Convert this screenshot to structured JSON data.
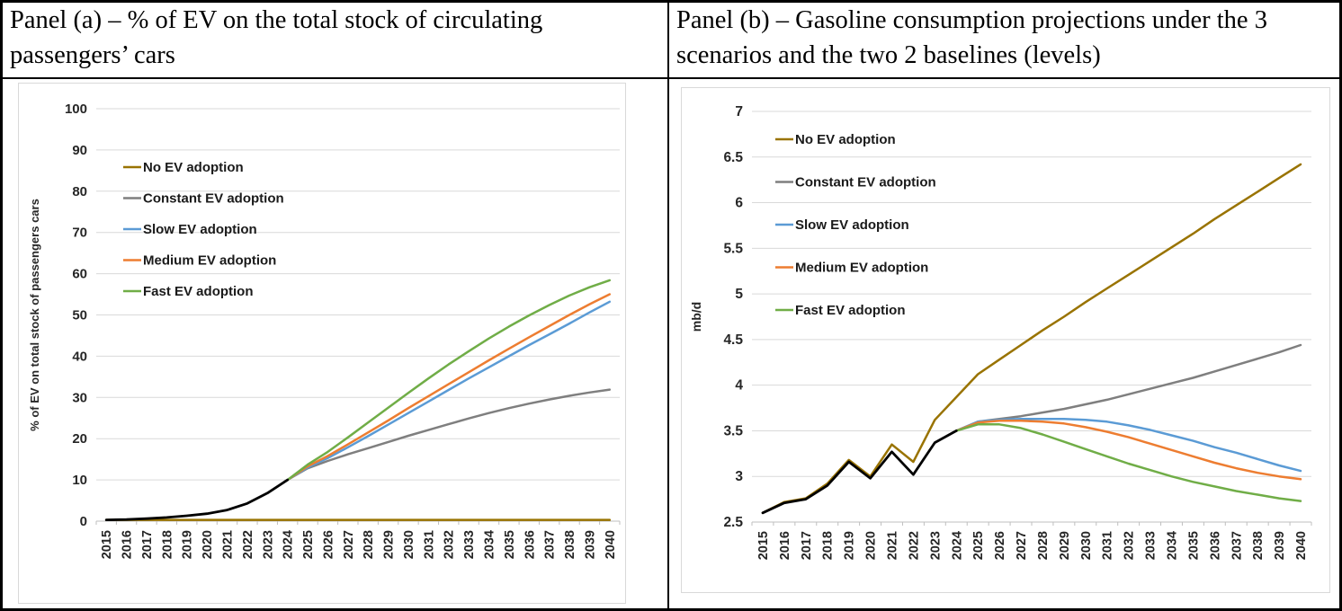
{
  "headers": {
    "panel_a": "Panel (a) – % of EV on the total stock of circulating passengers’ cars",
    "panel_b": "Panel (b) – Gasoline consumption projections under the 3 scenarios and the two 2 baselines (levels)"
  },
  "colors": {
    "no_ev": "#997300",
    "constant": "#7F7F7F",
    "slow": "#5B9BD5",
    "medium": "#ED7D31",
    "fast": "#70AD47",
    "historical": "#000000",
    "gridline": "#D9D9D9",
    "axis": "#BFBFBF",
    "tick_text": "#262626"
  },
  "chart_data": [
    {
      "panel": "a",
      "type": "line",
      "title": "",
      "xlabel": "",
      "ylabel": "% of EV on total stock of passengers cars",
      "ylim": [
        0,
        100
      ],
      "y_ticks": [
        0,
        10,
        20,
        30,
        40,
        50,
        60,
        70,
        80,
        90,
        100
      ],
      "x": [
        2015,
        2016,
        2017,
        2018,
        2019,
        2020,
        2021,
        2022,
        2023,
        2024,
        2025,
        2026,
        2027,
        2028,
        2029,
        2030,
        2031,
        2032,
        2033,
        2034,
        2035,
        2036,
        2037,
        2038,
        2039,
        2040
      ],
      "grid": true,
      "legend_position": "upper-left",
      "series": [
        {
          "name": "No EV adoption",
          "key": "no_ev",
          "color": "#997300",
          "start_year": 2015,
          "values": [
            0.3,
            0.3,
            0.3,
            0.3,
            0.3,
            0.3,
            0.3,
            0.3,
            0.3,
            0.3,
            0.3,
            0.3,
            0.3,
            0.3,
            0.3,
            0.3,
            0.3,
            0.3,
            0.3,
            0.3,
            0.3,
            0.3,
            0.3,
            0.3,
            0.3,
            0.3
          ]
        },
        {
          "name": "Constant EV adoption",
          "key": "constant",
          "color": "#7F7F7F",
          "start_year": 2024,
          "values": [
            10.0,
            12.8,
            14.6,
            16.2,
            17.7,
            19.2,
            20.7,
            22.1,
            23.5,
            24.9,
            26.2,
            27.4,
            28.5,
            29.5,
            30.4,
            31.2,
            31.9
          ]
        },
        {
          "name": "Slow EV adoption",
          "key": "slow",
          "color": "#5B9BD5",
          "start_year": 2024,
          "values": [
            10.0,
            13.0,
            15.3,
            17.9,
            20.6,
            23.4,
            26.2,
            29.0,
            31.8,
            34.6,
            37.3,
            40.0,
            42.7,
            45.3,
            47.9,
            50.6,
            53.2
          ]
        },
        {
          "name": "Medium EV adoption",
          "key": "medium",
          "color": "#ED7D31",
          "start_year": 2024,
          "values": [
            10.0,
            13.3,
            15.8,
            18.6,
            21.5,
            24.4,
            27.4,
            30.3,
            33.2,
            36.1,
            39.0,
            41.8,
            44.6,
            47.3,
            50.0,
            52.6,
            55.0
          ]
        },
        {
          "name": "Fast EV adoption",
          "key": "fast",
          "color": "#70AD47",
          "start_year": 2024,
          "values": [
            10.0,
            13.7,
            16.8,
            20.3,
            23.9,
            27.5,
            31.1,
            34.6,
            38.0,
            41.2,
            44.3,
            47.2,
            49.9,
            52.4,
            54.7,
            56.7,
            58.4
          ]
        },
        {
          "name": "historical",
          "key": "historical",
          "color": "#000000",
          "start_year": 2015,
          "legend": false,
          "values": [
            0.3,
            0.4,
            0.6,
            0.9,
            1.3,
            1.8,
            2.7,
            4.3,
            6.8,
            10.0
          ]
        }
      ]
    },
    {
      "panel": "b",
      "type": "line",
      "title": "",
      "xlabel": "",
      "ylabel": "mb/d",
      "ylim": [
        2.5,
        7
      ],
      "y_ticks": [
        2.5,
        3,
        3.5,
        4,
        4.5,
        5,
        5.5,
        6,
        6.5,
        7
      ],
      "x": [
        2015,
        2016,
        2017,
        2018,
        2019,
        2020,
        2021,
        2022,
        2023,
        2024,
        2025,
        2026,
        2027,
        2028,
        2029,
        2030,
        2031,
        2032,
        2033,
        2034,
        2035,
        2036,
        2037,
        2038,
        2039,
        2040
      ],
      "grid": true,
      "legend_position": "upper-left",
      "series": [
        {
          "name": "No EV adoption",
          "key": "no_ev",
          "color": "#997300",
          "start_year": 2015,
          "values": [
            2.6,
            2.72,
            2.76,
            2.92,
            3.18,
            3.0,
            3.35,
            3.16,
            3.62,
            3.87,
            4.12,
            4.28,
            4.44,
            4.6,
            4.75,
            4.91,
            5.06,
            5.21,
            5.36,
            5.51,
            5.66,
            5.82,
            5.97,
            6.12,
            6.27,
            6.42
          ]
        },
        {
          "name": "Constant EV adoption",
          "key": "constant",
          "color": "#7F7F7F",
          "start_year": 2024,
          "values": [
            3.5,
            3.6,
            3.63,
            3.66,
            3.7,
            3.74,
            3.79,
            3.84,
            3.9,
            3.96,
            4.02,
            4.08,
            4.15,
            4.22,
            4.29,
            4.36,
            4.44
          ]
        },
        {
          "name": "Slow EV adoption",
          "key": "slow",
          "color": "#5B9BD5",
          "start_year": 2024,
          "values": [
            3.5,
            3.6,
            3.62,
            3.63,
            3.63,
            3.63,
            3.62,
            3.6,
            3.56,
            3.51,
            3.45,
            3.39,
            3.32,
            3.26,
            3.19,
            3.12,
            3.06
          ]
        },
        {
          "name": "Medium EV adoption",
          "key": "medium",
          "color": "#ED7D31",
          "start_year": 2024,
          "values": [
            3.5,
            3.59,
            3.61,
            3.61,
            3.6,
            3.58,
            3.54,
            3.49,
            3.43,
            3.36,
            3.29,
            3.22,
            3.15,
            3.09,
            3.04,
            3.0,
            2.97
          ]
        },
        {
          "name": "Fast EV adoption",
          "key": "fast",
          "color": "#70AD47",
          "start_year": 2024,
          "values": [
            3.5,
            3.57,
            3.57,
            3.53,
            3.46,
            3.38,
            3.3,
            3.22,
            3.14,
            3.07,
            3.0,
            2.94,
            2.89,
            2.84,
            2.8,
            2.76,
            2.73
          ]
        },
        {
          "name": "historical",
          "key": "historical",
          "color": "#000000",
          "start_year": 2015,
          "legend": false,
          "values": [
            2.6,
            2.71,
            2.75,
            2.9,
            3.16,
            2.98,
            3.27,
            3.02,
            3.37,
            3.5
          ]
        }
      ]
    }
  ]
}
